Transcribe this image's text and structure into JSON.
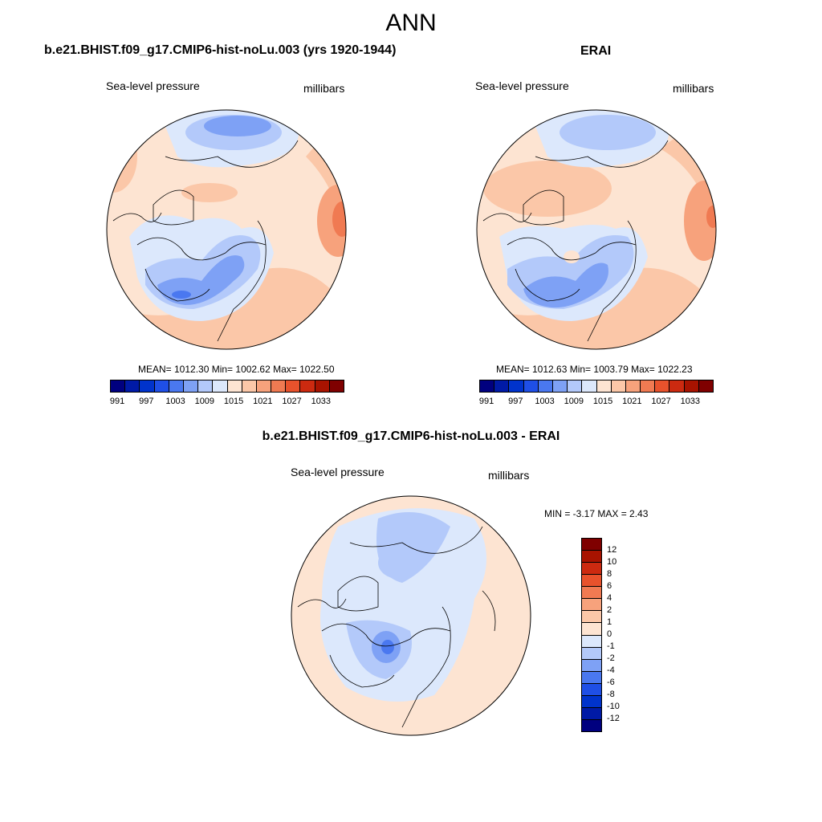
{
  "title": "ANN",
  "panels": {
    "model": {
      "title": "b.e21.BHIST.f09_g17.CMIP6-hist-noLu.003 (yrs 1920-1944)",
      "left_label": "Sea-level pressure",
      "right_label": "millibars",
      "stats": "MEAN= 1012.30  Min= 1002.62  Max= 1022.50"
    },
    "obs": {
      "title": "ERAI",
      "left_label": "Sea-level pressure",
      "right_label": "millibars",
      "stats": "MEAN= 1012.63  Min= 1003.79  Max= 1022.23"
    },
    "diff": {
      "title": "b.e21.BHIST.f09_g17.CMIP6-hist-noLu.003 - ERAI",
      "left_label": "Sea-level pressure",
      "right_label": "millibars",
      "stats": "MIN =  -3.17 MAX =   2.43"
    }
  },
  "colorbar_abs": {
    "colors": [
      "#00007f",
      "#001aa6",
      "#0033cc",
      "#1f4fe6",
      "#4a78f0",
      "#7ea1f5",
      "#b3c9fa",
      "#dce8fc",
      "#fde4d2",
      "#fbc7a8",
      "#f7a27c",
      "#f07a52",
      "#e8522c",
      "#cc2a10",
      "#a81300",
      "#7f0000"
    ],
    "tick_labels": [
      "991",
      "997",
      "1003",
      "1009",
      "1015",
      "1021",
      "1027",
      "1033"
    ]
  },
  "colorbar_diff": {
    "colors": [
      "#7f0000",
      "#a81300",
      "#cc2a10",
      "#e8522c",
      "#f07a52",
      "#f7a27c",
      "#fbc7a8",
      "#fde4d2",
      "#dce8fc",
      "#b3c9fa",
      "#7ea1f5",
      "#4a78f0",
      "#1f4fe6",
      "#0033cc",
      "#001aa6",
      "#00007f"
    ],
    "tick_labels": [
      "12",
      "10",
      "8",
      "6",
      "4",
      "2",
      "1",
      "0",
      "-1",
      "-2",
      "-4",
      "-6",
      "-8",
      "-10",
      "-12"
    ]
  }
}
